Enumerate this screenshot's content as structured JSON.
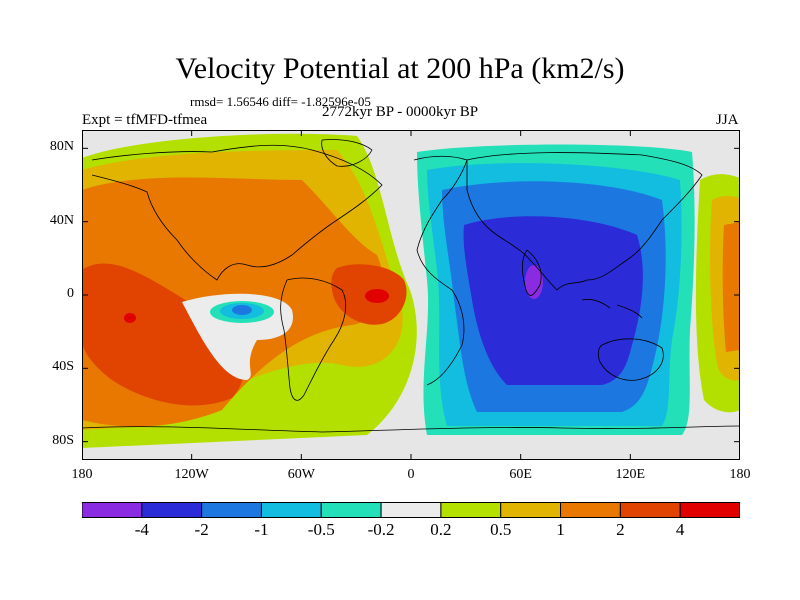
{
  "title": "Velocity Potential at 200 hPa (km2/s)",
  "subtitle_stats": "rmsd= 1.56546 diff= -1.82596e-05",
  "period": "2772kyr BP - 0000kyr BP",
  "experiment": "Expt = tfMFD-tfmea",
  "season": "JJA",
  "map": {
    "projection": "cylindrical equidistant",
    "lon_range": [
      -180,
      180
    ],
    "lat_range": [
      -90,
      90
    ],
    "lat_ticks": [
      {
        "lat": 80,
        "label": "80N"
      },
      {
        "lat": 40,
        "label": "40N"
      },
      {
        "lat": 0,
        "label": "0"
      },
      {
        "lat": -40,
        "label": "40S"
      },
      {
        "lat": -80,
        "label": "80S"
      }
    ],
    "lon_ticks": [
      {
        "lon": -180,
        "label": "180"
      },
      {
        "lon": -120,
        "label": "120W"
      },
      {
        "lon": -60,
        "label": "60W"
      },
      {
        "lon": 0,
        "label": "0"
      },
      {
        "lon": 60,
        "label": "60E"
      },
      {
        "lon": 120,
        "label": "120E"
      },
      {
        "lon": 180,
        "label": "180"
      }
    ],
    "missing_color": "#e6e6e6",
    "coastline_color": "#000000",
    "features": [
      {
        "name": "positive anomaly centre, central-east Pacific",
        "lon": -157,
        "lat": -13,
        "value": 4
      },
      {
        "name": "positive anomaly centre, eastern tropical Atlantic",
        "lon": -17,
        "lat": 1,
        "value": 4
      },
      {
        "name": "negative anomaly centre, eastern Pacific",
        "lon": -96,
        "lat": -8,
        "value": -2
      },
      {
        "name": "negative anomaly centre, Arabian Sea / Indian Ocean",
        "lon": 68,
        "lat": 9,
        "value": -4
      },
      {
        "name": "weak positive band, far western Pacific",
        "lon": 170,
        "lat": 20,
        "value": 1
      }
    ]
  },
  "colorbar": {
    "levels": [
      "-4",
      "-2",
      "-1",
      "-0.5",
      "-0.2",
      "0.2",
      "0.5",
      "1",
      "2",
      "4"
    ],
    "colors": [
      "#8a2be2",
      "#2b2bd8",
      "#1c78e0",
      "#12bde0",
      "#24e0b8",
      "#ececec",
      "#b4e000",
      "#e0b400",
      "#e87800",
      "#e04400",
      "#e00000"
    ]
  }
}
